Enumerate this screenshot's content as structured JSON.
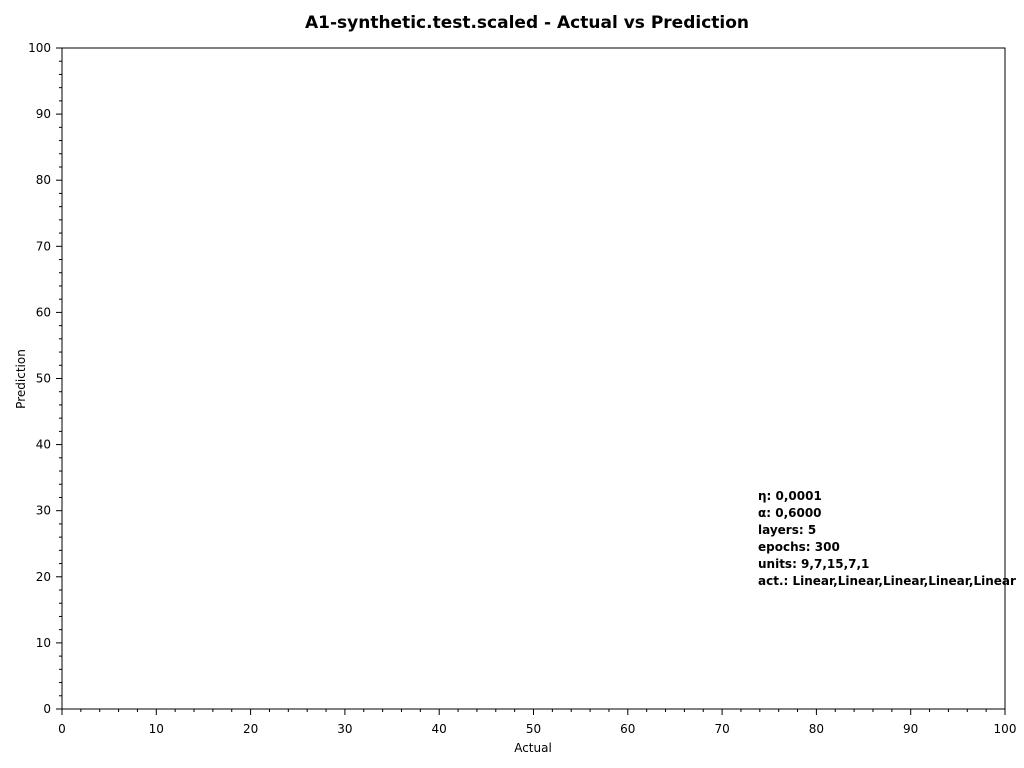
{
  "chart_data": {
    "type": "scatter",
    "title": "A1-synthetic.test.scaled - Actual vs Prediction",
    "xlabel": "Actual",
    "ylabel": "Prediction",
    "xlim": [
      0,
      100
    ],
    "ylim": [
      0,
      100
    ],
    "x_major_ticks": [
      0,
      10,
      20,
      30,
      40,
      50,
      60,
      70,
      80,
      90,
      100
    ],
    "y_major_ticks": [
      0,
      10,
      20,
      30,
      40,
      50,
      60,
      70,
      80,
      90,
      100
    ],
    "x_minor_step": 2,
    "y_minor_step": 2,
    "grid": false,
    "points": [],
    "annotations": [
      "η: 0,0001",
      "α: 0,6000",
      "layers: 5",
      "epochs: 300",
      "units: 9,7,15,7,1",
      "act.: Linear,Linear,Linear,Linear,Linear"
    ]
  }
}
